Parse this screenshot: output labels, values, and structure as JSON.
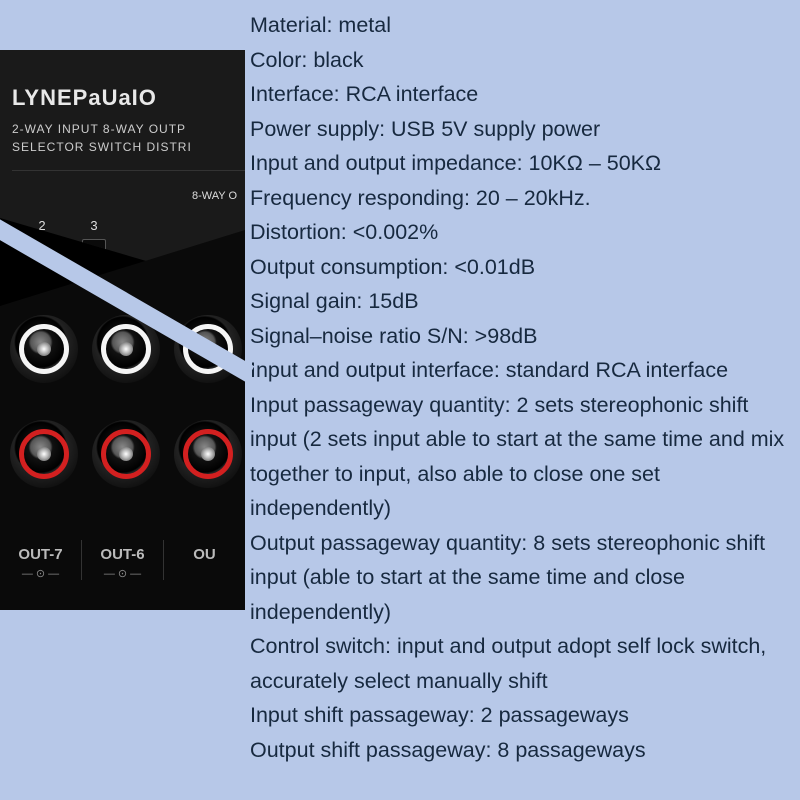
{
  "product": {
    "brand": "LYNEPaUaIO",
    "subtitle1": "2-WAY INPUT 8-WAY OUTP",
    "subtitle2": "SELECTOR SWITCH DISTRI",
    "eightway_label": "8-WAY O",
    "switches": [
      "2",
      "3"
    ],
    "out_labels": [
      "OUT-7",
      "OUT-6",
      "OU"
    ],
    "out_sublabel": "— ⊙ —",
    "colors": {
      "page_bg": "#b7c8e8",
      "panel_bg": "#0a0a0a",
      "text_light": "#e8e8e8",
      "rca_white": "#f5f5f5",
      "rca_red": "#d32020"
    }
  },
  "specs": [
    "Material: metal",
    "Color: black",
    "Interface: RCA interface",
    "Power supply: USB 5V supply power",
    "Input and output impedance: 10KΩ – 50KΩ",
    "Frequency responding: 20 – 20kHz.",
    "Distortion: <0.002%",
    "Output consumption: <0.01dB",
    "Signal gain: 15dB",
    "Signal–noise ratio S/N: >98dB",
    "Input and output interface: standard RCA interface",
    "Input passageway quantity: 2 sets stereophonic shift input (2 sets input able to start at the same time and mix together to input, also able to close one set independently)",
    "Output passageway quantity: 8 sets stereophonic shift input (able to start at the same time and close independently)",
    "Control switch: input and output adopt self lock switch, accurately select manually shift",
    "Input shift passageway: 2 passageways",
    "Output shift passageway: 8 passageways"
  ]
}
